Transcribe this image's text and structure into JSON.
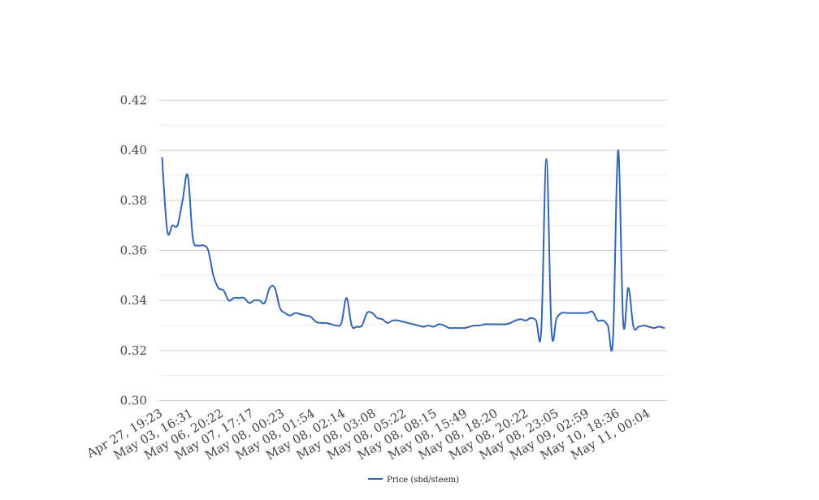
{
  "chart_data": {
    "type": "line",
    "title": "",
    "xlabel": "",
    "ylabel": "",
    "ylim": [
      0.3,
      0.42
    ],
    "yticks": [
      "0.30",
      "0.32",
      "0.34",
      "0.36",
      "0.38",
      "0.40",
      "0.42"
    ],
    "x_tick_labels": [
      "Apr 27, 19:23",
      "May 03, 16:31",
      "May 06, 20:22",
      "May 07, 17:17",
      "May 08, 00:23",
      "May 08, 01:54",
      "May 08, 02:14",
      "May 08, 03:08",
      "May 08, 05:22",
      "May 08, 08:15",
      "May 08, 15:49",
      "May 08, 18:20",
      "May 08, 20:22",
      "May 08, 23:05",
      "May 09, 02:59",
      "May 10, 18:36",
      "May 11, 00:04"
    ],
    "grid": true,
    "legend_position": "bottom-center",
    "series": [
      {
        "name": "Price (sbd/steem)",
        "color": "#3465b3",
        "values": [
          0.397,
          0.368,
          0.37,
          0.37,
          0.38,
          0.39,
          0.365,
          0.362,
          0.362,
          0.36,
          0.35,
          0.345,
          0.344,
          0.34,
          0.341,
          0.341,
          0.341,
          0.339,
          0.34,
          0.34,
          0.339,
          0.345,
          0.345,
          0.337,
          0.335,
          0.334,
          0.335,
          0.3345,
          0.334,
          0.3335,
          0.3315,
          0.331,
          0.331,
          0.3305,
          0.33,
          0.331,
          0.341,
          0.33,
          0.3295,
          0.33,
          0.335,
          0.335,
          0.333,
          0.3325,
          0.331,
          0.332,
          0.332,
          0.3315,
          0.331,
          0.3305,
          0.33,
          0.3295,
          0.33,
          0.3295,
          0.3305,
          0.33,
          0.329,
          0.329,
          0.329,
          0.329,
          0.3295,
          0.33,
          0.33,
          0.3305,
          0.3305,
          0.3305,
          0.3305,
          0.3305,
          0.331,
          0.332,
          0.3325,
          0.332,
          0.333,
          0.332,
          0.328,
          0.3965,
          0.328,
          0.333,
          0.335,
          0.335,
          0.335,
          0.335,
          0.335,
          0.335,
          0.3355,
          0.332,
          0.332,
          0.33,
          0.3245,
          0.4,
          0.331,
          0.345,
          0.3295,
          0.3295,
          0.33,
          0.3295,
          0.329,
          0.3295,
          0.329
        ]
      }
    ]
  }
}
